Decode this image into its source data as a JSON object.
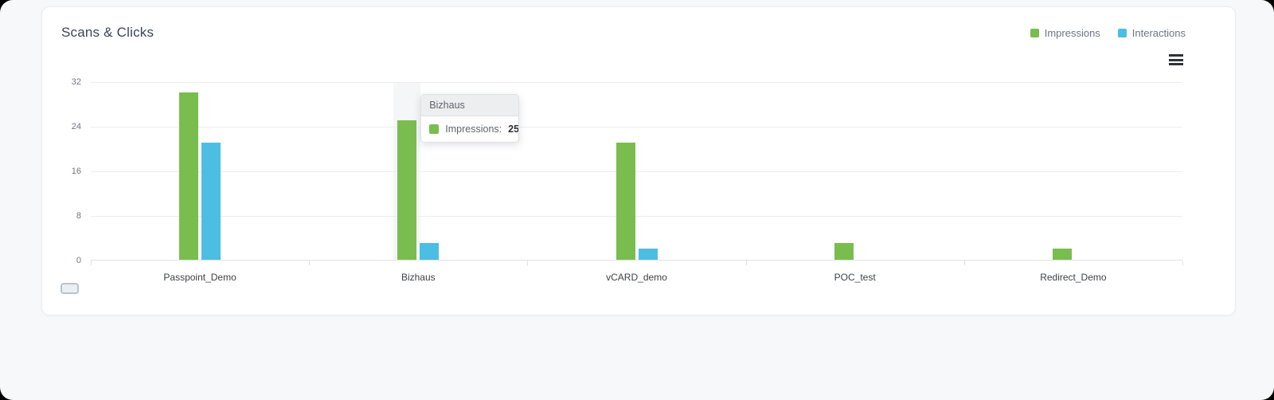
{
  "card": {
    "title": "Scans & Clicks"
  },
  "legend": {
    "items": [
      {
        "label": "Impressions",
        "color": "#79bd4f"
      },
      {
        "label": "Interactions",
        "color": "#4cbee3"
      }
    ]
  },
  "tooltip": {
    "category": "Bizhaus",
    "label": "Impressions:",
    "value": "25",
    "swatch_color": "#79bd4f"
  },
  "chart_data": {
    "type": "bar",
    "title": "Scans & Clicks",
    "categories": [
      "Passpoint_Demo",
      "Bizhaus",
      "vCARD_demo",
      "POC_test",
      "Redirect_Demo"
    ],
    "series": [
      {
        "name": "Impressions",
        "color": "#79bd4f",
        "values": [
          30,
          25,
          21,
          3,
          2
        ]
      },
      {
        "name": "Interactions",
        "color": "#4cbee3",
        "values": [
          21,
          3,
          2,
          0,
          0
        ]
      }
    ],
    "ylim": [
      0,
      32
    ],
    "yticks": [
      0,
      8,
      16,
      24,
      32
    ],
    "grid": true,
    "legend_position": "top-right",
    "hovered_category": "Bizhaus",
    "hovered_series": "Impressions",
    "hover_band_color": "#f4f6f8"
  }
}
